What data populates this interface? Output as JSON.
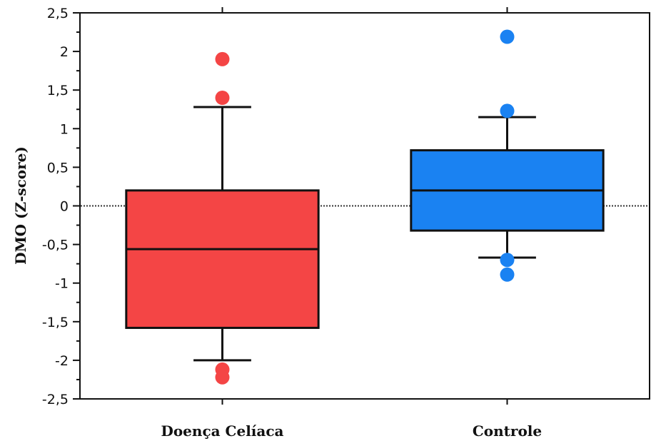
{
  "chart_data": {
    "type": "boxplot",
    "ylabel": "DMO (Z-score)",
    "ylim": [
      -2.5,
      2.5
    ],
    "y_ticks": [
      2.5,
      2,
      1.5,
      1,
      0.5,
      0,
      -0.5,
      -1,
      -1.5,
      -2,
      -2.5
    ],
    "y_tick_labels": [
      "2,5",
      "2",
      "1,5",
      "1",
      "0,5",
      "0",
      "-0,5",
      "-1",
      "-1,5",
      "-2",
      "-2,5"
    ],
    "reference_line": 0,
    "categories": [
      "Doença Celíaca",
      "Controle"
    ],
    "series": [
      {
        "category": "Doença Celíaca",
        "color": "#f44545",
        "whisker_low": -2.0,
        "q1": -1.58,
        "median": -0.56,
        "q3": 0.2,
        "whisker_high": 1.28,
        "outliers": [
          1.9,
          1.4,
          -2.12,
          -2.22
        ]
      },
      {
        "category": "Controle",
        "color": "#1a82f2",
        "whisker_low": -0.67,
        "q1": -0.32,
        "median": 0.2,
        "q3": 0.72,
        "whisker_high": 1.15,
        "outliers": [
          2.19,
          1.23,
          -0.7,
          -0.89
        ]
      }
    ]
  }
}
